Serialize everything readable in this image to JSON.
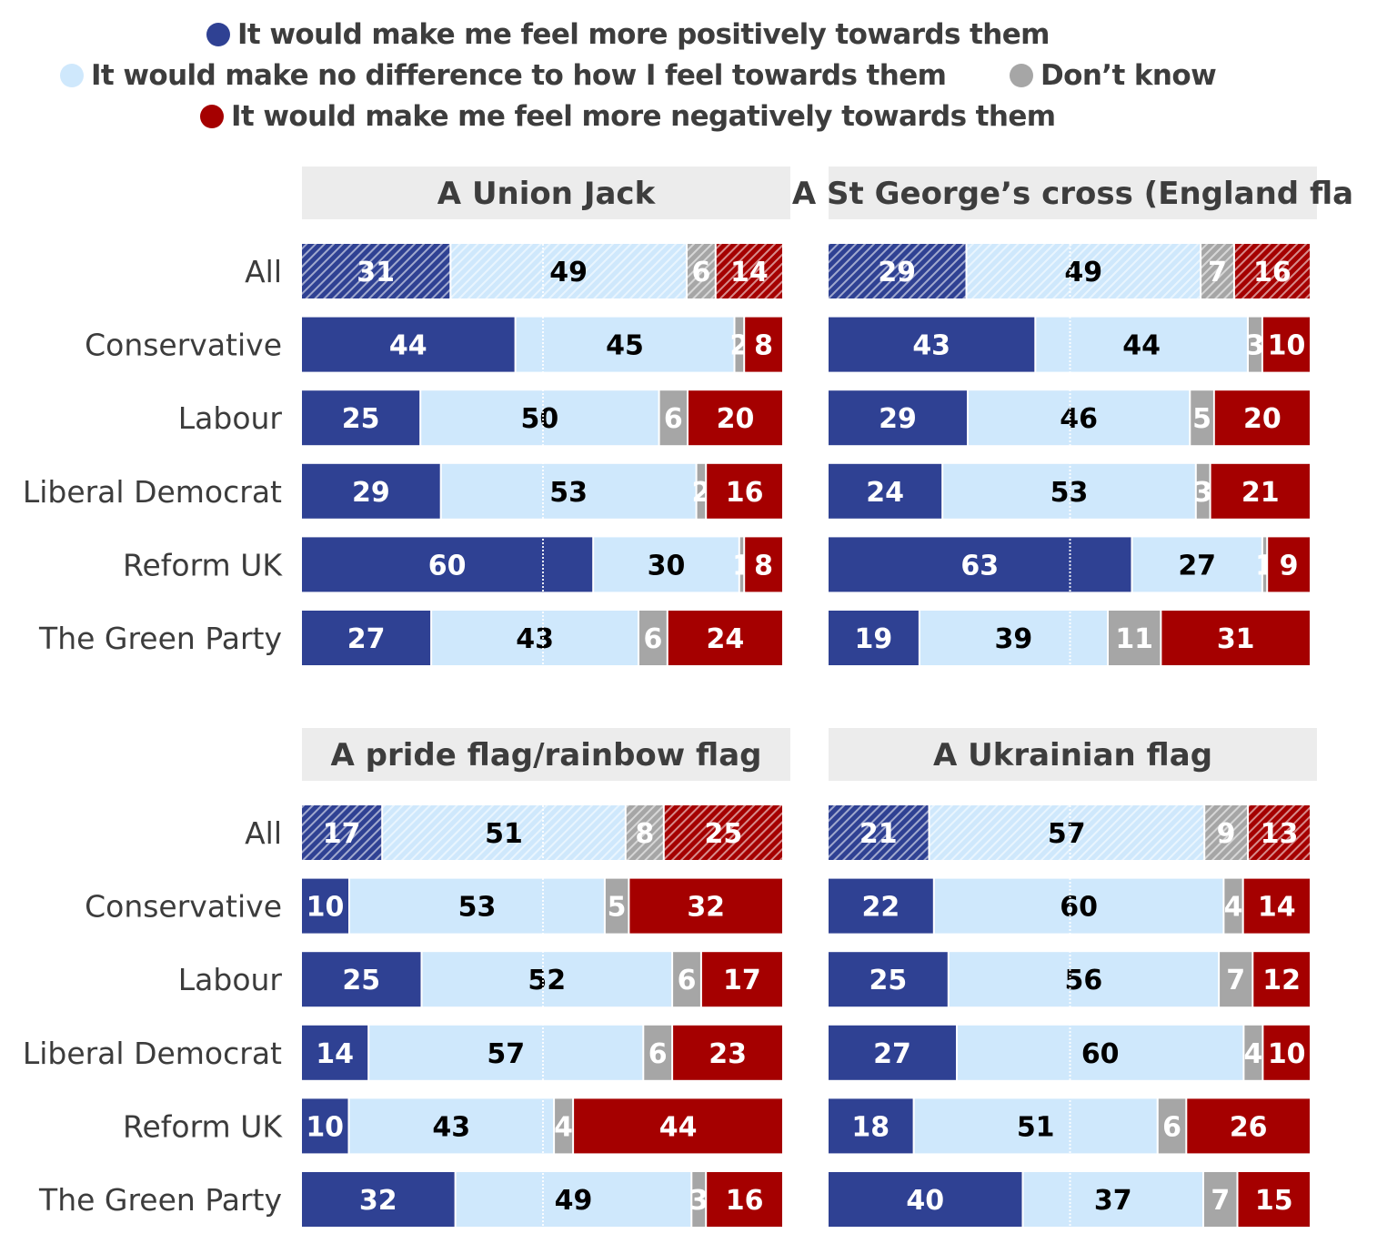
{
  "legend": {
    "items": [
      {
        "key": "positive",
        "label": "It would make me feel more positively towards them",
        "color": "#2f4193"
      },
      {
        "key": "no_difference",
        "label": "It would make no difference to how I feel towards them",
        "color": "#cfe8fc"
      },
      {
        "key": "dont_know",
        "label": "Don’t know",
        "color": "#a6a6a6"
      },
      {
        "key": "negative",
        "label": "It would make me feel more negatively towards them",
        "color": "#a50000"
      }
    ]
  },
  "chart_data": [
    {
      "type": "bar",
      "orientation": "horizontal",
      "stacked": true,
      "title": "A Union Jack",
      "categories": [
        "All",
        "Conservative",
        "Labour",
        "Liberal Democrat",
        "Reform UK",
        "The Green Party"
      ],
      "series": [
        {
          "name": "It would make me feel more positively towards them",
          "values": [
            31,
            44,
            25,
            29,
            60,
            27
          ]
        },
        {
          "name": "It would make no difference to how I feel towards them",
          "values": [
            49,
            45,
            50,
            53,
            30,
            43
          ]
        },
        {
          "name": "Don’t know",
          "values": [
            6,
            2,
            6,
            2,
            1,
            6
          ]
        },
        {
          "name": "It would make me feel more negatively towards them",
          "values": [
            14,
            8,
            20,
            16,
            8,
            24
          ]
        }
      ],
      "xlim": [
        0,
        100
      ],
      "legend": "top"
    },
    {
      "type": "bar",
      "orientation": "horizontal",
      "stacked": true,
      "title": "A St George’s cross (England fla",
      "categories": [
        "All",
        "Conservative",
        "Labour",
        "Liberal Democrat",
        "Reform UK",
        "The Green Party"
      ],
      "series": [
        {
          "name": "It would make me feel more positively towards them",
          "values": [
            29,
            43,
            29,
            24,
            63,
            19
          ]
        },
        {
          "name": "It would make no difference to how I feel towards them",
          "values": [
            49,
            44,
            46,
            53,
            27,
            39
          ]
        },
        {
          "name": "Don’t know",
          "values": [
            7,
            3,
            5,
            3,
            1,
            11
          ]
        },
        {
          "name": "It would make me feel more negatively towards them",
          "values": [
            16,
            10,
            20,
            21,
            9,
            31
          ]
        }
      ],
      "xlim": [
        0,
        100
      ],
      "legend": "top"
    },
    {
      "type": "bar",
      "orientation": "horizontal",
      "stacked": true,
      "title": "A pride flag/rainbow flag",
      "categories": [
        "All",
        "Conservative",
        "Labour",
        "Liberal Democrat",
        "Reform UK",
        "The Green Party"
      ],
      "series": [
        {
          "name": "It would make me feel more positively towards them",
          "values": [
            17,
            10,
            25,
            14,
            10,
            32
          ]
        },
        {
          "name": "It would make no difference to how I feel towards them",
          "values": [
            51,
            53,
            52,
            57,
            43,
            49
          ]
        },
        {
          "name": "Don’t know",
          "values": [
            8,
            5,
            6,
            6,
            4,
            3
          ]
        },
        {
          "name": "It would make me feel more negatively towards them",
          "values": [
            25,
            32,
            17,
            23,
            44,
            16
          ]
        }
      ],
      "xlim": [
        0,
        100
      ],
      "legend": "top"
    },
    {
      "type": "bar",
      "orientation": "horizontal",
      "stacked": true,
      "title": "A Ukrainian flag",
      "categories": [
        "All",
        "Conservative",
        "Labour",
        "Liberal Democrat",
        "Reform UK",
        "The Green Party"
      ],
      "series": [
        {
          "name": "It would make me feel more positively towards them",
          "values": [
            21,
            22,
            25,
            27,
            18,
            40
          ]
        },
        {
          "name": "It would make no difference to how I feel towards them",
          "values": [
            57,
            60,
            56,
            60,
            51,
            37
          ]
        },
        {
          "name": "Don’t know",
          "values": [
            9,
            4,
            7,
            4,
            6,
            7
          ]
        },
        {
          "name": "It would make me feel more negatively towards them",
          "values": [
            13,
            14,
            12,
            10,
            26,
            15
          ]
        }
      ],
      "xlim": [
        0,
        100
      ],
      "legend": "top"
    }
  ]
}
